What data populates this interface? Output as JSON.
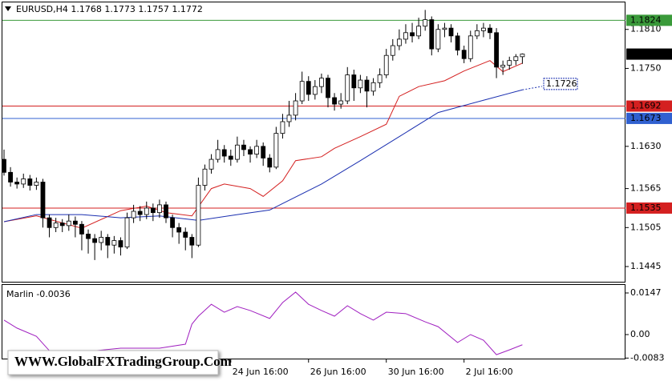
{
  "chart_data": [
    {
      "type": "candlestick",
      "title": "EURUSD,H4  1.1768 1.1773 1.1757 1.1772",
      "annotation": "WWW.GlobalFXTradingGroup.Com",
      "categories": [
        null,
        null,
        null,
        null,
        null,
        null,
        null,
        null,
        null,
        null,
        null,
        null,
        null,
        null,
        null,
        null,
        null,
        null,
        null,
        null,
        null,
        null,
        null,
        null,
        null,
        null,
        null,
        null,
        null,
        null,
        null,
        null,
        null,
        null,
        null,
        "24 Jun 16:00",
        null,
        null,
        null,
        null,
        null,
        null,
        null,
        null,
        null,
        null,
        null,
        "26 Jun 16:00",
        null,
        null,
        null,
        null,
        null,
        null,
        null,
        null,
        null,
        null,
        null,
        "30 Jun 16:00",
        null,
        null,
        null,
        null,
        null,
        null,
        null,
        null,
        null,
        null,
        null,
        "2 Jul 16:00",
        null,
        null,
        null,
        null,
        null,
        null,
        null,
        null,
        null
      ],
      "open": [
        1.161,
        1.159,
        1.1575,
        1.1572,
        1.158,
        1.157,
        1.1575,
        1.152,
        1.1505,
        1.1512,
        1.1508,
        1.1515,
        1.151,
        1.1495,
        1.1488,
        1.1482,
        1.149,
        1.1478,
        1.1485,
        1.1475,
        1.152,
        1.153,
        1.1525,
        1.1535,
        1.1528,
        1.154,
        1.152,
        1.1505,
        1.1498,
        1.149,
        1.1478,
        1.157,
        1.1595,
        1.161,
        1.1625,
        1.1615,
        1.161,
        1.1632,
        1.1625,
        1.1618,
        1.163,
        1.1612,
        1.1598,
        1.165,
        1.1668,
        1.1678,
        1.17,
        1.173,
        1.171,
        1.1722,
        1.1735,
        1.1705,
        1.1695,
        1.17,
        1.174,
        1.172,
        1.1732,
        1.1715,
        1.1728,
        1.174,
        1.177,
        1.1785,
        1.1795,
        1.1805,
        1.18,
        1.1815,
        1.1825,
        1.178,
        1.181,
        1.1812,
        1.18,
        1.1778,
        1.1765,
        1.18,
        1.1808,
        1.1812,
        1.1805,
        1.1752,
        1.1755,
        1.1762,
        1.1768
      ],
      "high": [
        1.1625,
        1.1598,
        1.1582,
        1.1588,
        1.1586,
        1.1582,
        1.158,
        1.1525,
        1.152,
        1.1518,
        1.1525,
        1.1522,
        1.1515,
        1.1502,
        1.1495,
        1.15,
        1.1495,
        1.1492,
        1.149,
        1.1528,
        1.154,
        1.1538,
        1.1545,
        1.1542,
        1.1548,
        1.1545,
        1.1525,
        1.1512,
        1.1505,
        1.1495,
        1.1582,
        1.1602,
        1.1618,
        1.164,
        1.1632,
        1.1625,
        1.1645,
        1.164,
        1.163,
        1.164,
        1.1636,
        1.1618,
        1.166,
        1.168,
        1.17,
        1.1712,
        1.1745,
        1.1738,
        1.1732,
        1.1742,
        1.174,
        1.1712,
        1.1712,
        1.1752,
        1.1748,
        1.174,
        1.1738,
        1.1735,
        1.175,
        1.178,
        1.1795,
        1.181,
        1.1818,
        1.182,
        1.1828,
        1.184,
        1.183,
        1.1818,
        1.182,
        1.1818,
        1.1805,
        1.1785,
        1.1808,
        1.1818,
        1.182,
        1.1818,
        1.1812,
        1.1762,
        1.1768,
        1.1772,
        1.1773
      ],
      "low": [
        1.1585,
        1.1568,
        1.1565,
        1.1566,
        1.1562,
        1.1563,
        1.1505,
        1.149,
        1.1498,
        1.1498,
        1.15,
        1.149,
        1.147,
        1.1465,
        1.1455,
        1.147,
        1.1458,
        1.1465,
        1.1462,
        1.1472,
        1.1512,
        1.1515,
        1.1518,
        1.1515,
        1.152,
        1.1512,
        1.149,
        1.148,
        1.147,
        1.1458,
        1.1475,
        1.1562,
        1.1588,
        1.1605,
        1.1605,
        1.16,
        1.1605,
        1.1615,
        1.1605,
        1.1612,
        1.16,
        1.159,
        1.1595,
        1.1642,
        1.166,
        1.167,
        1.1695,
        1.17,
        1.1702,
        1.1712,
        1.169,
        1.1685,
        1.1688,
        1.1695,
        1.17,
        1.1712,
        1.169,
        1.1708,
        1.172,
        1.1735,
        1.1762,
        1.1778,
        1.1788,
        1.179,
        1.1795,
        1.1808,
        1.177,
        1.1775,
        1.1798,
        1.179,
        1.177,
        1.1758,
        1.176,
        1.1795,
        1.1798,
        1.1795,
        1.1735,
        1.174,
        1.1748,
        1.1755,
        1.1757
      ],
      "close": [
        1.159,
        1.1575,
        1.1572,
        1.158,
        1.157,
        1.1575,
        1.152,
        1.1505,
        1.1512,
        1.1508,
        1.1515,
        1.151,
        1.1495,
        1.1488,
        1.1482,
        1.149,
        1.1478,
        1.1485,
        1.1475,
        1.152,
        1.153,
        1.1525,
        1.1535,
        1.1528,
        1.154,
        1.152,
        1.1505,
        1.1498,
        1.149,
        1.1478,
        1.157,
        1.1595,
        1.161,
        1.1625,
        1.1615,
        1.161,
        1.1632,
        1.1625,
        1.1618,
        1.163,
        1.1612,
        1.1598,
        1.165,
        1.1668,
        1.1678,
        1.17,
        1.173,
        1.171,
        1.1722,
        1.1735,
        1.1705,
        1.1695,
        1.17,
        1.174,
        1.172,
        1.1732,
        1.1715,
        1.1728,
        1.174,
        1.177,
        1.1785,
        1.1795,
        1.1805,
        1.18,
        1.1815,
        1.1825,
        1.178,
        1.181,
        1.1812,
        1.18,
        1.1778,
        1.1765,
        1.18,
        1.1808,
        1.1812,
        1.1805,
        1.1752,
        1.1755,
        1.1762,
        1.1768,
        1.1772
      ],
      "series": [
        {
          "color": "#d42020",
          "x": [
            0,
            5,
            12,
            18,
            22,
            25,
            29,
            32,
            34,
            38,
            40,
            43,
            45,
            49,
            51,
            55,
            59,
            61,
            64,
            68,
            71,
            75,
            77,
            80
          ],
          "values": [
            1.1514,
            1.1523,
            1.1504,
            1.1531,
            1.1538,
            1.1528,
            1.1523,
            1.1565,
            1.1572,
            1.1565,
            1.1553,
            1.1577,
            1.1608,
            1.1614,
            1.1627,
            1.1645,
            1.1664,
            1.1707,
            1.1722,
            1.1731,
            1.1746,
            1.1762,
            1.1745,
            1.1758
          ]
        },
        {
          "color": "#1a2fb0",
          "x": [
            0,
            5,
            12,
            18,
            24,
            30,
            36,
            41,
            49,
            55,
            61,
            67,
            74,
            80
          ],
          "values": [
            1.1514,
            1.1525,
            1.1525,
            1.152,
            1.1523,
            1.1516,
            1.1525,
            1.1532,
            1.1572,
            1.1608,
            1.1645,
            1.1682,
            1.1701,
            1.1717
          ],
          "end_label": 1.1726
        }
      ],
      "hlines": [
        {
          "value": 1.1824,
          "color": "#3a9a3a"
        },
        {
          "value": 1.1692,
          "color": "#d42020"
        },
        {
          "value": 1.1673,
          "color": "#3060d0"
        },
        {
          "value": 1.1535,
          "color": "#d42020"
        }
      ],
      "current_price": 1.1772,
      "ylim": [
        1.14216,
        1.18528
      ],
      "yticks": [
        {
          "value": 1.181,
          "label": "1.1810"
        },
        {
          "value": 1.175,
          "label": "1.1750"
        },
        {
          "value": 1.163,
          "label": "1.1630"
        },
        1.1565,
        1.1505,
        1.1445
      ]
    },
    {
      "type": "line",
      "title": "Marlin -0.0036",
      "x": [
        0,
        2,
        5,
        7,
        12,
        18,
        24,
        28,
        29,
        30,
        32,
        34,
        36,
        38,
        41,
        43,
        45,
        47,
        49,
        51,
        53,
        55,
        57,
        59,
        62,
        65,
        67,
        70,
        72,
        74,
        76,
        78,
        80
      ],
      "series": [
        {
          "color": "#a020c0",
          "values": [
            0.0051,
            0.0023,
            -0.0006,
            -0.0057,
            -0.0062,
            -0.0048,
            -0.0048,
            -0.0034,
            0.0037,
            0.0065,
            0.0107,
            0.0079,
            0.0099,
            0.0085,
            0.0057,
            0.0113,
            0.015,
            0.0107,
            0.0085,
            0.0065,
            0.0102,
            0.0074,
            0.0051,
            0.0079,
            0.0074,
            0.0045,
            0.0028,
            -0.0028,
            0,
            -0.002,
            -0.0071,
            -0.0054,
            -0.0036
          ]
        }
      ],
      "ylim": [
        -0.00848,
        0.01753
      ],
      "yticks": [
        0.0147,
        {
          "value": 0,
          "label": "0.00"
        },
        -0.0083
      ]
    }
  ]
}
